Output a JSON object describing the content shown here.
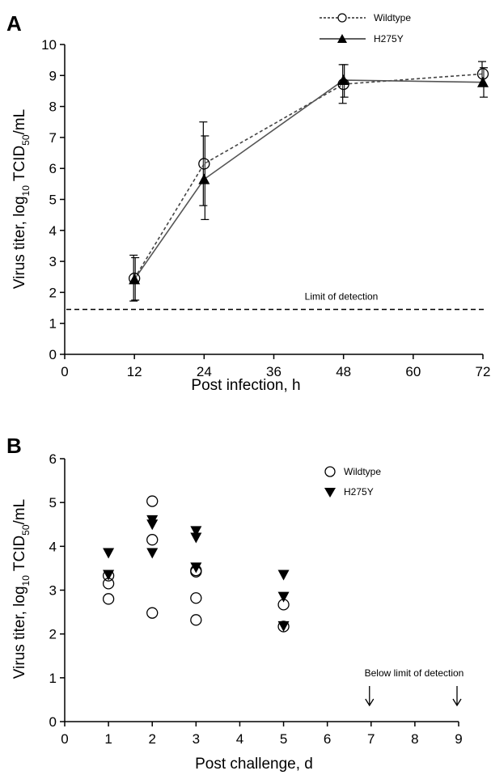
{
  "chart_data": [
    {
      "panel_letter": "A",
      "type": "line",
      "xlabel": "Post infection, h",
      "ylabel_main": "Virus titer, log",
      "ylabel_sub1": "10",
      "ylabel_mid": " TCID",
      "ylabel_sub2": "50",
      "ylabel_end": "/mL",
      "xlim": [
        0,
        72
      ],
      "ylim": [
        0,
        10
      ],
      "x_ticks": [
        "0",
        "12",
        "24",
        "36",
        "48",
        "60",
        "72"
      ],
      "y_ticks": [
        "0",
        "1",
        "2",
        "3",
        "4",
        "5",
        "6",
        "7",
        "8",
        "9",
        "10"
      ],
      "legend_position": "top-right",
      "limit_of_detection": {
        "label": "Limit of detection",
        "value": 1.45
      },
      "series": [
        {
          "name": "Wildtype",
          "marker": "open-circle",
          "line": "dashed",
          "x": [
            12,
            24,
            48,
            72
          ],
          "y": [
            2.45,
            6.15,
            8.72,
            9.05
          ],
          "err_low": [
            1.72,
            4.8,
            8.1,
            8.65
          ],
          "err_high": [
            3.2,
            7.5,
            9.35,
            9.45
          ]
        },
        {
          "name": "H275Y",
          "marker": "filled-triangle",
          "line": "solid",
          "x": [
            12,
            24,
            48,
            72
          ],
          "y": [
            2.42,
            5.65,
            8.85,
            8.78
          ],
          "err_low": [
            1.75,
            4.35,
            8.3,
            8.3
          ],
          "err_high": [
            3.12,
            7.05,
            9.35,
            9.25
          ]
        }
      ]
    },
    {
      "panel_letter": "B",
      "type": "scatter",
      "xlabel": "Post challenge, d",
      "ylabel_main": "Virus titer, log",
      "ylabel_sub1": "10",
      "ylabel_mid": " TCID",
      "ylabel_sub2": "50",
      "ylabel_end": "/mL",
      "xlim": [
        0,
        9
      ],
      "ylim": [
        0,
        6
      ],
      "x_ticks": [
        "0",
        "1",
        "2",
        "3",
        "4",
        "5",
        "6",
        "7",
        "8",
        "9"
      ],
      "y_ticks": [
        "0",
        "1",
        "2",
        "3",
        "4",
        "5",
        "6"
      ],
      "legend_position": "top-right",
      "annotation": {
        "label": "Below limit of detection",
        "arrow_x": [
          7,
          9
        ]
      },
      "series": [
        {
          "name": "Wildtype",
          "marker": "open-circle",
          "x": [
            1,
            1,
            1,
            2,
            2,
            2,
            3,
            3,
            3,
            3,
            5,
            5
          ],
          "y": [
            3.33,
            3.15,
            2.8,
            5.03,
            4.15,
            2.48,
            3.45,
            3.42,
            2.82,
            2.32,
            2.67,
            2.17
          ]
        },
        {
          "name": "H275Y",
          "marker": "filled-down-triangle",
          "x": [
            1,
            1,
            2,
            2,
            2,
            3,
            3,
            3,
            5,
            5,
            5
          ],
          "y": [
            3.85,
            3.35,
            4.6,
            4.5,
            3.85,
            4.35,
            4.2,
            3.52,
            3.35,
            2.85,
            2.18
          ]
        }
      ]
    }
  ]
}
